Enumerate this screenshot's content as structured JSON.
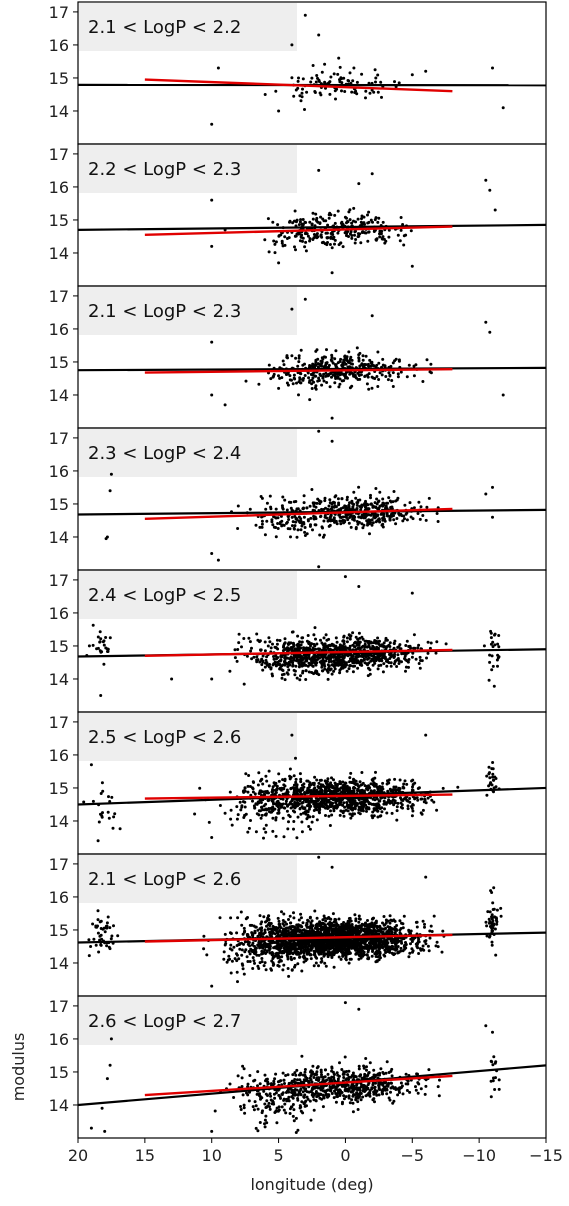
{
  "chart_data": {
    "type": "scatter",
    "xlabel": "longitude (deg)",
    "ylabel": "modulus",
    "xlim": [
      20,
      -15
    ],
    "ylim": [
      13.0,
      17.3
    ],
    "x_ticks": [
      20,
      15,
      10,
      5,
      0,
      -5,
      -10,
      -15
    ],
    "x_tick_labels": [
      "20",
      "15",
      "10",
      "5",
      "0",
      "−5",
      "−10",
      "−15"
    ],
    "y_ticks": [
      14,
      15,
      16,
      17
    ],
    "y_tick_labels": [
      "14",
      "15",
      "16",
      "17"
    ],
    "colors": {
      "points": "#000000",
      "black_fit": "#000000",
      "red_fit": "#e00000",
      "label_box": "#eeeeee"
    },
    "panels": [
      {
        "label": "2.1  <  LogP  <  2.2",
        "black_fit": {
          "x": [
            20,
            -15
          ],
          "y": [
            14.79,
            14.78
          ]
        },
        "red_fit": {
          "x": [
            15,
            -8
          ],
          "y": [
            14.95,
            14.6
          ]
        },
        "points": {
          "density": 0.18,
          "clusters": [
            {
              "center": 0,
              "spread": 3.2,
              "count": 80,
              "y_center": 14.8,
              "y_spread": 0.35
            },
            {
              "center": 3,
              "spread": 2,
              "count": 20,
              "y_center": 14.8,
              "y_spread": 0.5
            }
          ],
          "outliers": [
            [
              9.5,
              15.3
            ],
            [
              10,
              13.6
            ],
            [
              4,
              16
            ],
            [
              3,
              16.9
            ],
            [
              2,
              16.3
            ],
            [
              6,
              14.5
            ],
            [
              5,
              14
            ],
            [
              -11,
              15.3
            ],
            [
              -11.8,
              14.1
            ],
            [
              0.5,
              15.6
            ],
            [
              -6,
              15.2
            ],
            [
              -5,
              15.1
            ]
          ]
        }
      },
      {
        "label": "2.2  <  LogP  <  2.3",
        "black_fit": {
          "x": [
            20,
            -15
          ],
          "y": [
            14.7,
            14.85
          ]
        },
        "red_fit": {
          "x": [
            15,
            -8
          ],
          "y": [
            14.55,
            14.8
          ]
        },
        "points": {
          "density": 0.3,
          "clusters": [
            {
              "center": 0,
              "spread": 4,
              "count": 230,
              "y_center": 14.7,
              "y_spread": 0.4
            },
            {
              "center": 3,
              "spread": 2.5,
              "count": 60,
              "y_center": 14.7,
              "y_spread": 0.5
            }
          ],
          "outliers": [
            [
              10,
              15.6
            ],
            [
              10,
              14.2
            ],
            [
              9,
              14.7
            ],
            [
              -1,
              16.1
            ],
            [
              -2,
              16.4
            ],
            [
              2,
              16.5
            ],
            [
              -10.5,
              16.2
            ],
            [
              -10.8,
              15.9
            ],
            [
              -11.2,
              15.3
            ],
            [
              -5,
              13.6
            ],
            [
              5,
              13.7
            ],
            [
              1,
              13.4
            ]
          ]
        }
      },
      {
        "label": "2.1  <  LogP  <  2.3",
        "black_fit": {
          "x": [
            20,
            -15
          ],
          "y": [
            14.75,
            14.82
          ]
        },
        "red_fit": {
          "x": [
            15,
            -8
          ],
          "y": [
            14.68,
            14.78
          ]
        },
        "points": {
          "density": 0.35,
          "clusters": [
            {
              "center": 0,
              "spread": 4,
              "count": 300,
              "y_center": 14.75,
              "y_spread": 0.4
            },
            {
              "center": 3,
              "spread": 2.5,
              "count": 90,
              "y_center": 14.75,
              "y_spread": 0.5
            }
          ],
          "outliers": [
            [
              10,
              15.6
            ],
            [
              10,
              14
            ],
            [
              9,
              13.7
            ],
            [
              4,
              16.6
            ],
            [
              3,
              16.9
            ],
            [
              -2,
              16.4
            ],
            [
              -10.5,
              16.2
            ],
            [
              -10.8,
              15.9
            ],
            [
              -11.8,
              14
            ],
            [
              1,
              13.3
            ],
            [
              5,
              14.2
            ]
          ]
        }
      },
      {
        "label": "2.3  <  LogP  <  2.4",
        "black_fit": {
          "x": [
            20,
            -15
          ],
          "y": [
            14.68,
            14.82
          ]
        },
        "red_fit": {
          "x": [
            15,
            -8
          ],
          "y": [
            14.55,
            14.85
          ]
        },
        "points": {
          "density": 0.45,
          "clusters": [
            {
              "center": -1,
              "spread": 3.8,
              "count": 380,
              "y_center": 14.75,
              "y_spread": 0.4
            },
            {
              "center": 4,
              "spread": 3,
              "count": 140,
              "y_center": 14.6,
              "y_spread": 0.5
            }
          ],
          "outliers": [
            [
              17.5,
              15.9
            ],
            [
              17.6,
              15.4
            ],
            [
              17.8,
              14
            ],
            [
              17.9,
              13.95
            ],
            [
              10,
              13.5
            ],
            [
              9.5,
              13.3
            ],
            [
              2,
              17.2
            ],
            [
              1,
              16.9
            ],
            [
              -11,
              15.5
            ],
            [
              -10.5,
              15.3
            ],
            [
              -11,
              14.6
            ],
            [
              2,
              13.1
            ]
          ]
        }
      },
      {
        "label": "2.4  <  LogP  <  2.5",
        "black_fit": {
          "x": [
            20,
            -15
          ],
          "y": [
            14.68,
            14.9
          ]
        },
        "red_fit": {
          "x": [
            15,
            -8
          ],
          "y": [
            14.7,
            14.88
          ]
        },
        "points": {
          "density": 0.5,
          "clusters": [
            {
              "center": 0,
              "spread": 4.5,
              "count": 700,
              "y_center": 14.75,
              "y_spread": 0.4
            },
            {
              "center": 4,
              "spread": 3.5,
              "count": 250,
              "y_center": 14.7,
              "y_spread": 0.6
            },
            {
              "center": 18.3,
              "spread": 0.8,
              "count": 25,
              "y_center": 15,
              "y_spread": 0.5
            },
            {
              "center": -11,
              "spread": 0.4,
              "count": 25,
              "y_center": 14.9,
              "y_spread": 0.7
            }
          ],
          "outliers": [
            [
              18.3,
              13.5
            ],
            [
              0,
              17.1
            ],
            [
              -1,
              16.8
            ],
            [
              -5,
              16.6
            ],
            [
              10,
              14
            ],
            [
              13,
              14
            ]
          ]
        }
      },
      {
        "label": "2.5  <  LogP  <  2.6",
        "black_fit": {
          "x": [
            20,
            -15
          ],
          "y": [
            14.5,
            15.0
          ]
        },
        "red_fit": {
          "x": [
            15,
            -8
          ],
          "y": [
            14.68,
            14.8
          ]
        },
        "points": {
          "density": 0.55,
          "clusters": [
            {
              "center": 0,
              "spread": 4.5,
              "count": 900,
              "y_center": 14.75,
              "y_spread": 0.45
            },
            {
              "center": 5,
              "spread": 3.5,
              "count": 300,
              "y_center": 14.6,
              "y_spread": 0.7
            },
            {
              "center": 18,
              "spread": 1,
              "count": 20,
              "y_center": 14.5,
              "y_spread": 0.6
            },
            {
              "center": -11,
              "spread": 0.4,
              "count": 25,
              "y_center": 15.3,
              "y_spread": 0.6
            }
          ],
          "outliers": [
            [
              19,
              15.7
            ],
            [
              18.5,
              13.4
            ],
            [
              10,
              13.5
            ],
            [
              4,
              16.6
            ],
            [
              -6,
              16.6
            ]
          ]
        }
      },
      {
        "label": "2.1  <  LogP  <  2.6",
        "black_fit": {
          "x": [
            20,
            -15
          ],
          "y": [
            14.62,
            14.92
          ]
        },
        "red_fit": {
          "x": [
            15,
            -8
          ],
          "y": [
            14.65,
            14.85
          ]
        },
        "points": {
          "density": 0.7,
          "clusters": [
            {
              "center": 0,
              "spread": 4.5,
              "count": 1700,
              "y_center": 14.75,
              "y_spread": 0.45
            },
            {
              "center": 5,
              "spread": 3.5,
              "count": 550,
              "y_center": 14.65,
              "y_spread": 0.65
            },
            {
              "center": 18.3,
              "spread": 0.8,
              "count": 45,
              "y_center": 14.9,
              "y_spread": 0.6
            },
            {
              "center": -11,
              "spread": 0.4,
              "count": 50,
              "y_center": 15.1,
              "y_spread": 0.7
            }
          ],
          "outliers": [
            [
              2,
              17.2
            ],
            [
              1,
              16.9
            ],
            [
              10,
              13.3
            ],
            [
              -6,
              16.6
            ]
          ]
        }
      },
      {
        "label": "2.6  <  LogP  <  2.7",
        "black_fit": {
          "x": [
            20,
            -15
          ],
          "y": [
            14.0,
            15.2
          ]
        },
        "red_fit": {
          "x": [
            15,
            -8
          ],
          "y": [
            14.3,
            14.88
          ]
        },
        "points": {
          "density": 0.5,
          "clusters": [
            {
              "center": 0,
              "spread": 4.5,
              "count": 550,
              "y_center": 14.6,
              "y_spread": 0.45
            },
            {
              "center": 5,
              "spread": 3.5,
              "count": 200,
              "y_center": 14.3,
              "y_spread": 0.7
            },
            {
              "center": -11,
              "spread": 0.4,
              "count": 15,
              "y_center": 15,
              "y_spread": 0.5
            }
          ],
          "outliers": [
            [
              17.5,
              16
            ],
            [
              17.6,
              15.2
            ],
            [
              17.8,
              14.8
            ],
            [
              18.2,
              13.9
            ],
            [
              19,
              13.3
            ],
            [
              18,
              13.2
            ],
            [
              0,
              17.1
            ],
            [
              -1,
              16.9
            ],
            [
              -10.5,
              16.4
            ],
            [
              -11,
              16.2
            ],
            [
              10,
              13.2
            ]
          ]
        }
      }
    ]
  }
}
